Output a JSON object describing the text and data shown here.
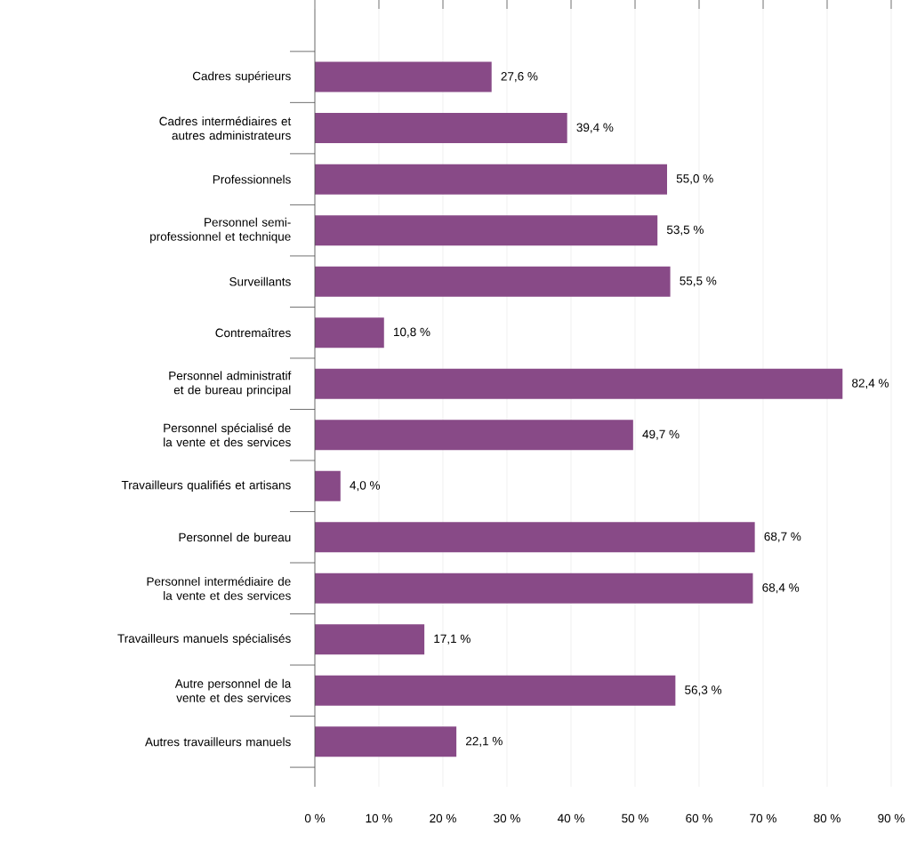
{
  "chart_data": {
    "type": "bar",
    "orientation": "horizontal",
    "categories": [
      "Cadres supérieurs",
      "Cadres intermédiaires et autres administrateurs",
      "Professionnels",
      "Personnel semi-professionnel et technique",
      "Surveillants",
      "Contremaîtres",
      "Personnel administratif et de bureau principal",
      "Personnel spécialisé de la vente et des services",
      "Travailleurs qualifiés et artisans",
      "Personnel de bureau",
      "Personnel intermédiaire de la vente et des services",
      "Travailleurs manuels spécialisés",
      "Autre personnel de la vente et des services",
      "Autres travailleurs manuels"
    ],
    "values": [
      27.6,
      39.4,
      55.0,
      53.5,
      55.5,
      10.8,
      82.4,
      49.7,
      4.0,
      68.7,
      68.4,
      17.1,
      56.3,
      22.1
    ],
    "value_labels": [
      "27,6 %",
      "39,4 %",
      "55,0 %",
      "53,5 %",
      "55,5 %",
      "10,8 %",
      "82,4 %",
      "49,7 %",
      "4,0 %",
      "68,7 %",
      "68,4 %",
      "17,1 %",
      "56,3 %",
      "22,1 %"
    ],
    "color": "#884a87",
    "xlim": [
      0,
      90
    ],
    "xticks": [
      {
        "value": 0,
        "label": "0 %"
      },
      {
        "value": 10,
        "label": "10 %"
      },
      {
        "value": 20,
        "label": "20 %"
      },
      {
        "value": 30,
        "label": "30 %"
      },
      {
        "value": 40,
        "label": "40 %"
      },
      {
        "value": 50,
        "label": "50 %"
      },
      {
        "value": 60,
        "label": "60 %"
      },
      {
        "value": 70,
        "label": "70 %"
      },
      {
        "value": 80,
        "label": "80 %"
      },
      {
        "value": 90,
        "label": "90 %"
      }
    ],
    "grid": "x"
  }
}
